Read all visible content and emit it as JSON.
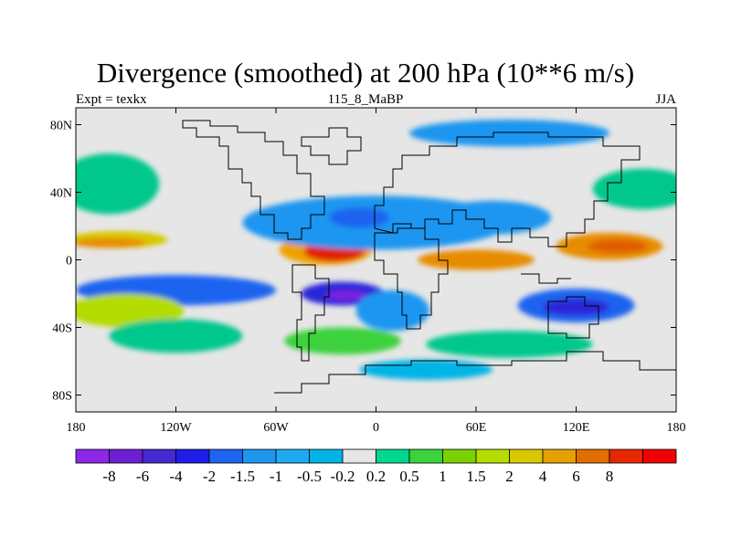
{
  "title": "Divergence (smoothed) at 200 hPa (10**6 m/s)",
  "left_string": "Expt = texkx",
  "center_string": "115_8_MaBP",
  "right_string": "JJA",
  "map": {
    "lat_ticks": [
      {
        "label": "80N",
        "value": 80
      },
      {
        "label": "40N",
        "value": 40
      },
      {
        "label": "0",
        "value": 0
      },
      {
        "label": "40S",
        "value": -40
      },
      {
        "label": "80S",
        "value": -80
      }
    ],
    "lon_ticks": [
      {
        "label": "180",
        "value": -180
      },
      {
        "label": "120W",
        "value": -120
      },
      {
        "label": "60W",
        "value": -60
      },
      {
        "label": "0",
        "value": 0
      },
      {
        "label": "60E",
        "value": 60
      },
      {
        "label": "120E",
        "value": 120
      },
      {
        "label": "180",
        "value": 180
      }
    ],
    "lon_range": [
      -180,
      180
    ],
    "lat_range": [
      -90,
      90
    ],
    "background_color": "#e6e6e6",
    "fields": [
      {
        "lon": -155,
        "lat": 12,
        "rx": 30,
        "ry": 5,
        "color": "#d8c800"
      },
      {
        "lon": -160,
        "lat": 10,
        "rx": 22,
        "ry": 3,
        "color": "#e78c00"
      },
      {
        "lon": 60,
        "lat": 0,
        "rx": 35,
        "ry": 6,
        "color": "#e78c00"
      },
      {
        "lon": 140,
        "lat": 8,
        "rx": 32,
        "ry": 8,
        "color": "#e78c00"
      },
      {
        "lon": 145,
        "lat": 8,
        "rx": 18,
        "ry": 4,
        "color": "#e05c00"
      },
      {
        "lon": -30,
        "lat": 6,
        "rx": 28,
        "ry": 9,
        "color": "#f0a000"
      },
      {
        "lon": -25,
        "lat": 5,
        "rx": 18,
        "ry": 6,
        "color": "#e02000"
      },
      {
        "lon": -120,
        "lat": -18,
        "rx": 60,
        "ry": 9,
        "color": "#1e64f0"
      },
      {
        "lon": -20,
        "lat": -20,
        "rx": 25,
        "ry": 7,
        "color": "#2a28d8"
      },
      {
        "lon": -18,
        "lat": -21,
        "rx": 12,
        "ry": 3,
        "color": "#7a20e0"
      },
      {
        "lon": 120,
        "lat": -27,
        "rx": 35,
        "ry": 10,
        "color": "#1e64f0"
      },
      {
        "lon": 120,
        "lat": -28,
        "rx": 20,
        "ry": 5,
        "color": "#2a28d8"
      },
      {
        "lon": 0,
        "lat": 22,
        "rx": 80,
        "ry": 16,
        "color": "#1e96f0"
      },
      {
        "lon": -10,
        "lat": 25,
        "rx": 18,
        "ry": 6,
        "color": "#1e64f0"
      },
      {
        "lon": 70,
        "lat": 25,
        "rx": 35,
        "ry": 10,
        "color": "#1e96f0"
      },
      {
        "lon": 10,
        "lat": -30,
        "rx": 22,
        "ry": 12,
        "color": "#1e96f0"
      },
      {
        "lon": -150,
        "lat": -30,
        "rx": 35,
        "ry": 10,
        "color": "#b4dc00"
      },
      {
        "lon": -120,
        "lat": -45,
        "rx": 40,
        "ry": 10,
        "color": "#00c88c"
      },
      {
        "lon": 80,
        "lat": -50,
        "rx": 50,
        "ry": 8,
        "color": "#00c88c"
      },
      {
        "lon": -20,
        "lat": -48,
        "rx": 35,
        "ry": 8,
        "color": "#3cd23c"
      },
      {
        "lon": -160,
        "lat": 45,
        "rx": 30,
        "ry": 18,
        "color": "#00c88c"
      },
      {
        "lon": 160,
        "lat": 42,
        "rx": 30,
        "ry": 12,
        "color": "#00c88c"
      },
      {
        "lon": 30,
        "lat": -65,
        "rx": 40,
        "ry": 6,
        "color": "#00b4e6"
      },
      {
        "lon": 80,
        "lat": 75,
        "rx": 60,
        "ry": 8,
        "color": "#1e96f0"
      }
    ]
  },
  "colorbar": {
    "colors": [
      "#8c28e6",
      "#6e1ed2",
      "#4628d2",
      "#1e1ee6",
      "#1e64f0",
      "#1e96f0",
      "#1eaaf0",
      "#00b4e6",
      "#e6e6e6",
      "#00d78c",
      "#3cd23c",
      "#78d200",
      "#b4dc00",
      "#d8c800",
      "#e6a000",
      "#e06e00",
      "#e62800",
      "#f00000"
    ],
    "labels": [
      "-8",
      "-6",
      "-4",
      "-2",
      "-1.5",
      "-1",
      "-0.5",
      "-0.2",
      "0.2",
      "0.5",
      "1",
      "1.5",
      "2",
      "4",
      "6",
      "8"
    ]
  }
}
